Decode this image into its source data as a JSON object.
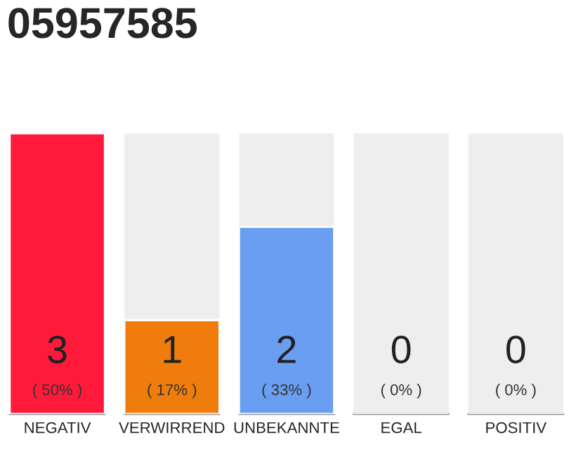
{
  "chart_data": {
    "type": "bar",
    "title": "05957585",
    "categories": [
      "NEGATIV",
      "VERWIRREND",
      "UNBEKANNTE",
      "EGAL",
      "POSITIV"
    ],
    "values": [
      3,
      1,
      2,
      0,
      0
    ],
    "colors": [
      "#ff1a3c",
      "#f07d0b",
      "#6a9ef0",
      null,
      null
    ],
    "data_labels": true,
    "annotations": [
      "( 50% )",
      "( 17% )",
      "( 33% )",
      "( 0% )",
      "( 0% )"
    ],
    "grid": false,
    "legend": false,
    "tick_labels": "x"
  }
}
